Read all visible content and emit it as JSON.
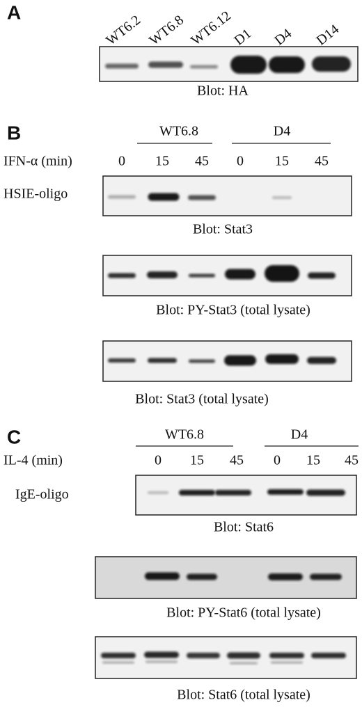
{
  "panels": [
    {
      "letter": "A",
      "lanes": [
        "WT6.2",
        "WT6.8",
        "WT6.12",
        "D1",
        "D4",
        "D14"
      ],
      "blots": [
        "Blot: HA"
      ]
    },
    {
      "letter": "B",
      "groups": [
        "WT6.8",
        "D4"
      ],
      "treatment": "IFN-α (min)",
      "times": [
        0,
        15,
        45,
        0,
        15,
        45
      ],
      "probe": "HSIE-oligo",
      "blots": [
        "Blot: Stat3",
        "Blot: PY-Stat3 (total lysate)",
        "Blot: Stat3 (total lysate)"
      ]
    },
    {
      "letter": "C",
      "groups": [
        "WT6.8",
        "D4"
      ],
      "treatment": "IL-4 (min)",
      "times": [
        0,
        15,
        45,
        0,
        15,
        45
      ],
      "probe": "IgE-oligo",
      "blots": [
        "Blot: Stat6",
        "Blot: PY-Stat6 (total lysate)",
        "Blot: Stat6 (total lysate)"
      ]
    }
  ]
}
